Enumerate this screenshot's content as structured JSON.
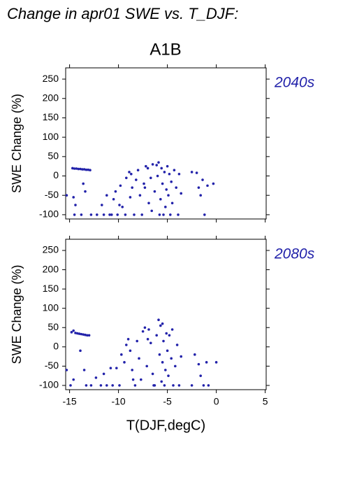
{
  "chart_data": [
    {
      "type": "scatter",
      "title": "Change in apr01 SWE vs. T_DJF:",
      "subtitle": "A1B",
      "panel_label": "2040s",
      "ylabel": "SWE Change (%)",
      "color": "#2222aa",
      "xtick_labels": false,
      "xlim": [
        -15.4,
        5.1
      ],
      "ylim": [
        -111,
        279
      ],
      "xticks": [
        -15,
        -10,
        -5,
        0,
        5
      ],
      "yticks": [
        -100,
        -50,
        0,
        50,
        100,
        150,
        200,
        250
      ],
      "x": [
        -15.3,
        -14.7,
        -14.5,
        -14.3,
        -14.1,
        -13.9,
        -13.7,
        -13.5,
        -13.3,
        -13.1,
        -12.9,
        -14.5,
        -14.4,
        -14.6,
        -13.8,
        -13.6,
        -13.4,
        -12.8,
        -12.2,
        -11.7,
        -11.5,
        -11.2,
        -10.9,
        -10.5,
        -10.3,
        -10.1,
        -9.8,
        -9.6,
        -9.3,
        -9.2,
        -8.9,
        -8.7,
        -8.6,
        -8.4,
        -8.2,
        -8.0,
        -7.8,
        -7.6,
        -7.4,
        -7.2,
        -7.0,
        -6.9,
        -6.7,
        -6.5,
        -6.3,
        -6.1,
        -5.9,
        -5.8,
        -5.7,
        -5.6,
        -5.5,
        -5.4,
        -5.3,
        -5.2,
        -5.1,
        -5.0,
        -4.9,
        -4.8,
        -4.7,
        -4.6,
        -4.5,
        -4.3,
        -4.1,
        -3.9,
        -3.8,
        -3.6,
        -2.5,
        -2.0,
        -1.8,
        -1.6,
        -1.4,
        -1.2,
        -0.9,
        -0.3,
        -10.7,
        -9.9,
        -6.6,
        -6.0,
        -7.3,
        -8.8
      ],
      "values": [
        -50,
        20,
        19,
        19,
        18,
        18,
        17,
        17,
        16,
        16,
        15,
        -100,
        -75,
        -55,
        -100,
        -20,
        -40,
        -100,
        -100,
        -75,
        -100,
        -50,
        -100,
        -60,
        -40,
        -100,
        -25,
        -80,
        -100,
        -5,
        10,
        5,
        -30,
        -100,
        -10,
        15,
        -50,
        -100,
        -20,
        25,
        20,
        -70,
        -5,
        30,
        -40,
        28,
        35,
        -100,
        -60,
        20,
        -20,
        -100,
        10,
        -80,
        -35,
        25,
        -50,
        5,
        -100,
        -15,
        -70,
        15,
        -30,
        -100,
        5,
        -45,
        10,
        8,
        -30,
        -50,
        -10,
        -100,
        -25,
        -20,
        -100,
        -75,
        -90,
        0,
        -30,
        -55
      ]
    },
    {
      "type": "scatter",
      "panel_label": "2080s",
      "ylabel": "SWE Change (%)",
      "xlabel": "T(DJF,degC)",
      "color": "#2222aa",
      "xtick_labels": true,
      "xlim": [
        -15.4,
        5.1
      ],
      "ylim": [
        -111,
        279
      ],
      "xticks": [
        -15,
        -10,
        -5,
        0,
        5
      ],
      "yticks": [
        -100,
        -50,
        0,
        50,
        100,
        150,
        200,
        250
      ],
      "x": [
        -15.3,
        -14.8,
        -14.6,
        -14.4,
        -14.2,
        -14.0,
        -13.8,
        -13.6,
        -13.4,
        -13.2,
        -13.0,
        -14.9,
        -14.6,
        -13.9,
        -13.5,
        -13.3,
        -12.8,
        -12.3,
        -11.8,
        -11.5,
        -11.2,
        -10.6,
        -10.2,
        -9.9,
        -9.7,
        -9.4,
        -9.2,
        -9.0,
        -8.8,
        -8.6,
        -8.3,
        -8.1,
        -7.9,
        -7.7,
        -7.5,
        -7.3,
        -7.1,
        -6.9,
        -6.7,
        -6.5,
        -6.3,
        -6.1,
        -5.9,
        -5.8,
        -5.7,
        -5.6,
        -5.5,
        -5.4,
        -5.3,
        -5.2,
        -5.1,
        -5.0,
        -4.9,
        -4.8,
        -4.6,
        -4.4,
        -4.2,
        -4.0,
        -3.8,
        -3.6,
        -2.5,
        -2.2,
        -1.8,
        -1.6,
        -1.3,
        -1.0,
        -0.8,
        0.0,
        -10.8,
        -8.5,
        -6.4,
        -7.0,
        -5.5,
        -4.5
      ],
      "values": [
        -60,
        38,
        42,
        36,
        35,
        34,
        33,
        32,
        31,
        30,
        30,
        -100,
        -85,
        -10,
        -60,
        -100,
        -100,
        -80,
        -100,
        -70,
        -100,
        -100,
        -55,
        -100,
        -20,
        -40,
        5,
        20,
        -10,
        -60,
        -100,
        15,
        -30,
        -85,
        40,
        50,
        -50,
        45,
        10,
        -70,
        -100,
        30,
        70,
        -20,
        55,
        -90,
        -40,
        15,
        -100,
        -60,
        35,
        -10,
        -75,
        30,
        -30,
        -100,
        -50,
        5,
        -100,
        -25,
        -100,
        -20,
        -45,
        -75,
        -100,
        -40,
        -100,
        -40,
        -55,
        -85,
        -100,
        20,
        60,
        45
      ]
    }
  ]
}
